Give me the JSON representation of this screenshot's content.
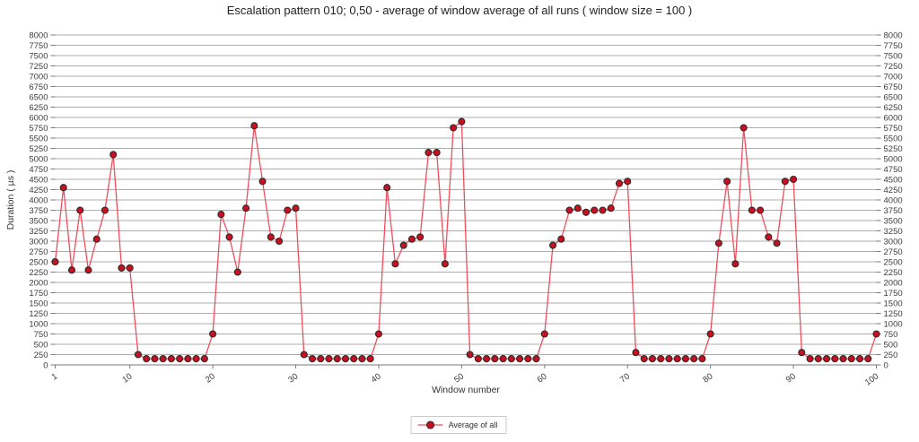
{
  "title": "Escalation pattern 010; 0,50 - average of window average of all runs ( window size = 100 )",
  "axes": {
    "x_label": "Window number",
    "y_label": "Duration ( µs )"
  },
  "legend": {
    "label": "Average of all"
  },
  "colors": {
    "background": "#ffffff",
    "grid": "#adadad",
    "axis": "#7a7a7a",
    "tick_text": "#3d3d3d",
    "line": "#ee4f5e",
    "marker_fill": "#c81021",
    "marker_stroke": "#2b2b2b",
    "legend_border": "#cccccc"
  },
  "chart_data": {
    "type": "line",
    "title": "Escalation pattern 010; 0,50 - average of window average of all runs ( window size = 100 )",
    "xlabel": "Window number",
    "ylabel": "Duration ( µs )",
    "xlim": [
      1,
      100
    ],
    "ylim": [
      0,
      8000
    ],
    "y_tick_step": 250,
    "x_ticks": [
      1,
      10,
      20,
      30,
      40,
      50,
      60,
      70,
      80,
      90,
      100
    ],
    "grid": "horizontal",
    "legend_position": "bottom-center",
    "x": [
      1,
      2,
      3,
      4,
      5,
      6,
      7,
      8,
      9,
      10,
      11,
      12,
      13,
      14,
      15,
      16,
      17,
      18,
      19,
      20,
      21,
      22,
      23,
      24,
      25,
      26,
      27,
      28,
      29,
      30,
      31,
      32,
      33,
      34,
      35,
      36,
      37,
      38,
      39,
      40,
      41,
      42,
      43,
      44,
      45,
      46,
      47,
      48,
      49,
      50,
      51,
      52,
      53,
      54,
      55,
      56,
      57,
      58,
      59,
      60,
      61,
      62,
      63,
      64,
      65,
      66,
      67,
      68,
      69,
      70,
      71,
      72,
      73,
      74,
      75,
      76,
      77,
      78,
      79,
      80,
      81,
      82,
      83,
      84,
      85,
      86,
      87,
      88,
      89,
      90,
      91,
      92,
      93,
      94,
      95,
      96,
      97,
      98,
      99,
      100
    ],
    "series": [
      {
        "name": "Average of all",
        "values": [
          2500,
          4300,
          2300,
          3750,
          2300,
          3050,
          3750,
          5100,
          2350,
          2350,
          250,
          150,
          150,
          150,
          150,
          150,
          150,
          150,
          150,
          750,
          3650,
          3100,
          2250,
          3800,
          5800,
          4450,
          3100,
          3000,
          3750,
          3800,
          250,
          150,
          150,
          150,
          150,
          150,
          150,
          150,
          150,
          750,
          4300,
          2450,
          2900,
          3050,
          3100,
          5150,
          5150,
          2450,
          5750,
          5900,
          250,
          150,
          150,
          150,
          150,
          150,
          150,
          150,
          150,
          750,
          2900,
          3050,
          3750,
          3800,
          3700,
          3750,
          3750,
          3800,
          4400,
          4450,
          300,
          150,
          150,
          150,
          150,
          150,
          150,
          150,
          150,
          750,
          2950,
          4450,
          2450,
          5750,
          3750,
          3750,
          3100,
          2950,
          4450,
          4500,
          300,
          150,
          150,
          150,
          150,
          150,
          150,
          150,
          150,
          750
        ]
      }
    ]
  }
}
